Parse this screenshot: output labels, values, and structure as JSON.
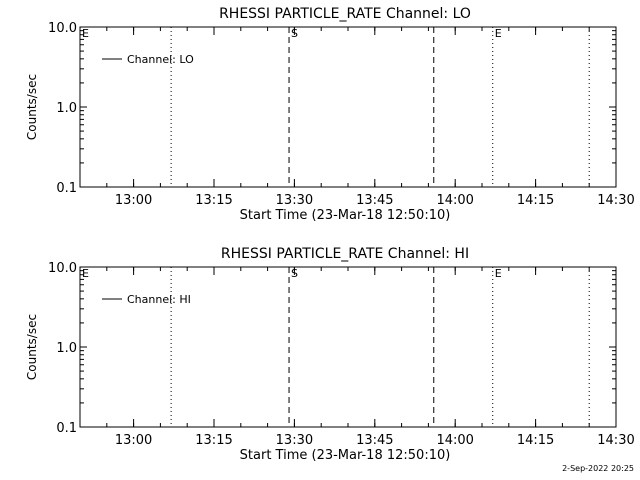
{
  "footer": {
    "timestamp": "2-Sep-2022 20:25"
  },
  "chart_data": [
    {
      "type": "line",
      "title": "RHESSI PARTICLE_RATE Channel: LO",
      "xlabel": "Start Time (23-Mar-18 12:50:10)",
      "ylabel": "Counts/sec",
      "y_scale": "log",
      "ylim": [
        0.1,
        10.0
      ],
      "y_ticks": [
        0.1,
        1.0,
        10.0
      ],
      "y_tick_labels": [
        "0.1",
        "1.0",
        "10.0"
      ],
      "xlim": [
        "12:50",
        "14:30"
      ],
      "x_ticks": [
        "13:00",
        "13:15",
        "13:30",
        "13:45",
        "14:00",
        "14:15",
        "14:30"
      ],
      "series": [
        {
          "name": "Channel: LO",
          "x": [],
          "y": []
        }
      ],
      "legend_position": "top-left",
      "markers": [
        {
          "time": "13:07",
          "style": "dotted",
          "label": ""
        },
        {
          "time": "13:29",
          "style": "dashed",
          "label": "S"
        },
        {
          "time": "13:56",
          "style": "dashed",
          "label": ""
        },
        {
          "time": "14:07",
          "style": "dotted",
          "label": "E"
        },
        {
          "time": "14:25",
          "style": "dotted",
          "label": ""
        }
      ],
      "edge_label": "E"
    },
    {
      "type": "line",
      "title": "RHESSI PARTICLE_RATE Channel: HI",
      "xlabel": "Start Time (23-Mar-18 12:50:10)",
      "ylabel": "Counts/sec",
      "y_scale": "log",
      "ylim": [
        0.1,
        10.0
      ],
      "y_ticks": [
        0.1,
        1.0,
        10.0
      ],
      "y_tick_labels": [
        "0.1",
        "1.0",
        "10.0"
      ],
      "xlim": [
        "12:50",
        "14:30"
      ],
      "x_ticks": [
        "13:00",
        "13:15",
        "13:30",
        "13:45",
        "14:00",
        "14:15",
        "14:30"
      ],
      "series": [
        {
          "name": "Channel: HI",
          "x": [],
          "y": []
        }
      ],
      "legend_position": "top-left",
      "markers": [
        {
          "time": "13:07",
          "style": "dotted",
          "label": ""
        },
        {
          "time": "13:29",
          "style": "dashed",
          "label": "S"
        },
        {
          "time": "13:56",
          "style": "dashed",
          "label": ""
        },
        {
          "time": "14:07",
          "style": "dotted",
          "label": "E"
        },
        {
          "time": "14:25",
          "style": "dotted",
          "label": ""
        }
      ],
      "edge_label": "E"
    }
  ]
}
